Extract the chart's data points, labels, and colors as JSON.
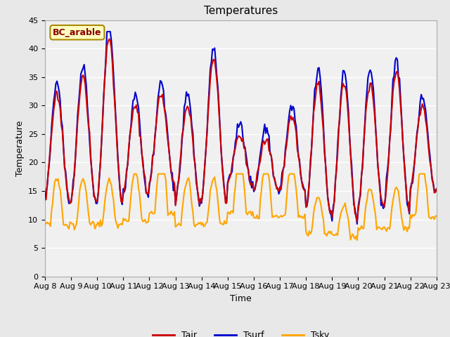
{
  "title": "Temperatures",
  "xlabel": "Time",
  "ylabel": "Temperature",
  "annotation": "BC_arable",
  "annotation_color": "#8B0000",
  "annotation_bg": "#FFFFC0",
  "ylim": [
    0,
    45
  ],
  "tair_color": "#CC0000",
  "tsurf_color": "#0000CC",
  "tsky_color": "#FFA500",
  "line_width": 1.5,
  "bg_color": "#E8E8E8",
  "plot_bg_color": "#F0F0F0",
  "grid_color": "#FFFFFF",
  "title_fontsize": 11,
  "axis_label_fontsize": 9,
  "tick_fontsize": 8
}
